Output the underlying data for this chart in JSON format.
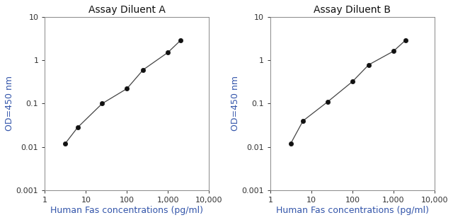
{
  "panel_A": {
    "title": "Assay Diluent A",
    "x": [
      3.13,
      6.25,
      25,
      100,
      250,
      1000,
      2000
    ],
    "y": [
      0.012,
      0.028,
      0.1,
      0.22,
      0.6,
      1.5,
      2.8
    ],
    "xlabel": "Human Fas concentrations (pg/ml)",
    "ylabel": "OD=450 nm",
    "xlim": [
      1,
      10000
    ],
    "ylim": [
      0.001,
      10
    ]
  },
  "panel_B": {
    "title": "Assay Diluent B",
    "x": [
      3.13,
      6.25,
      25,
      100,
      250,
      1000,
      2000
    ],
    "y": [
      0.012,
      0.04,
      0.11,
      0.32,
      0.78,
      1.6,
      2.9
    ],
    "xlabel": "Human Fas concentrations (pg/ml)",
    "ylabel": "OD=450 nm",
    "xlim": [
      1,
      10000
    ],
    "ylim": [
      0.001,
      10
    ]
  },
  "title_fontsize": 10,
  "label_fontsize": 9,
  "tick_fontsize": 8,
  "label_color": "#3355aa",
  "line_color": "#444444",
  "marker_color": "#111111",
  "bg_color": "#ffffff",
  "spine_color": "#888888",
  "xticks": [
    1,
    10,
    100,
    1000,
    10000
  ],
  "xtick_labels": [
    "1",
    "10",
    "100",
    "1,000",
    "10,000"
  ],
  "yticks": [
    0.001,
    0.01,
    0.1,
    1,
    10
  ],
  "ytick_labels": [
    "0.001",
    "0.01",
    "0.1",
    "1",
    "10"
  ]
}
